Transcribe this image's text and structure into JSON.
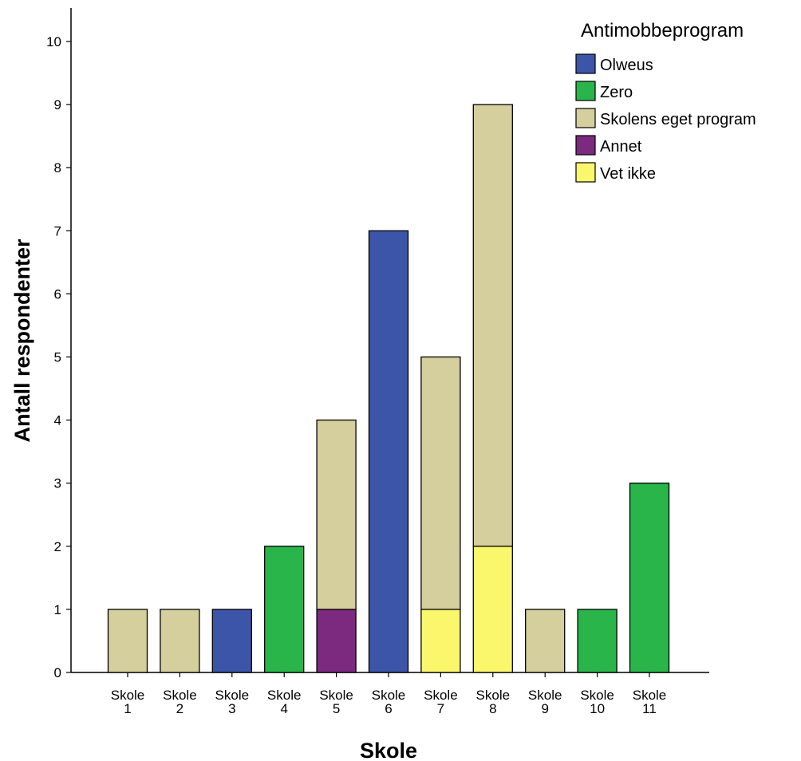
{
  "chart_data": {
    "type": "bar",
    "stacked": true,
    "xlabel": "Skole",
    "ylabel": "Antall respondenter",
    "ylim": [
      0,
      10
    ],
    "yticks": [
      0,
      1,
      2,
      3,
      4,
      5,
      6,
      7,
      8,
      9,
      10
    ],
    "grid": false,
    "legend_title": "Antimobbeprogram",
    "legend_position": "top-right",
    "categories": [
      [
        "Skole",
        "1"
      ],
      [
        "Skole",
        "2"
      ],
      [
        "Skole",
        "3"
      ],
      [
        "Skole",
        "4"
      ],
      [
        "Skole",
        "5"
      ],
      [
        "Skole",
        "6"
      ],
      [
        "Skole",
        "7"
      ],
      [
        "Skole",
        "8"
      ],
      [
        "Skole",
        "9"
      ],
      [
        "Skole",
        "10"
      ],
      [
        "Skole",
        "11"
      ]
    ],
    "series": [
      {
        "name": "Olweus",
        "color": "#3c55a8",
        "values": [
          0,
          0,
          1,
          0,
          0,
          7,
          0,
          0,
          0,
          0,
          0
        ]
      },
      {
        "name": "Zero",
        "color": "#2ab54b",
        "values": [
          0,
          0,
          0,
          2,
          0,
          0,
          0,
          0,
          0,
          1,
          3
        ]
      },
      {
        "name": "Skolens eget program",
        "color": "#d4cf9d",
        "values": [
          1,
          1,
          0,
          0,
          3,
          0,
          4,
          7,
          1,
          0,
          0
        ]
      },
      {
        "name": "Annet",
        "color": "#7b2a7f",
        "values": [
          0,
          0,
          0,
          0,
          1,
          0,
          0,
          0,
          0,
          0,
          0
        ]
      },
      {
        "name": "Vet ikke",
        "color": "#fbf76c",
        "values": [
          0,
          0,
          0,
          0,
          0,
          0,
          1,
          2,
          0,
          0,
          0
        ]
      }
    ],
    "stack_order_bottom_to_top": [
      "Annet",
      "Vet ikke",
      "Olweus",
      "Zero",
      "Skolens eget program"
    ]
  }
}
